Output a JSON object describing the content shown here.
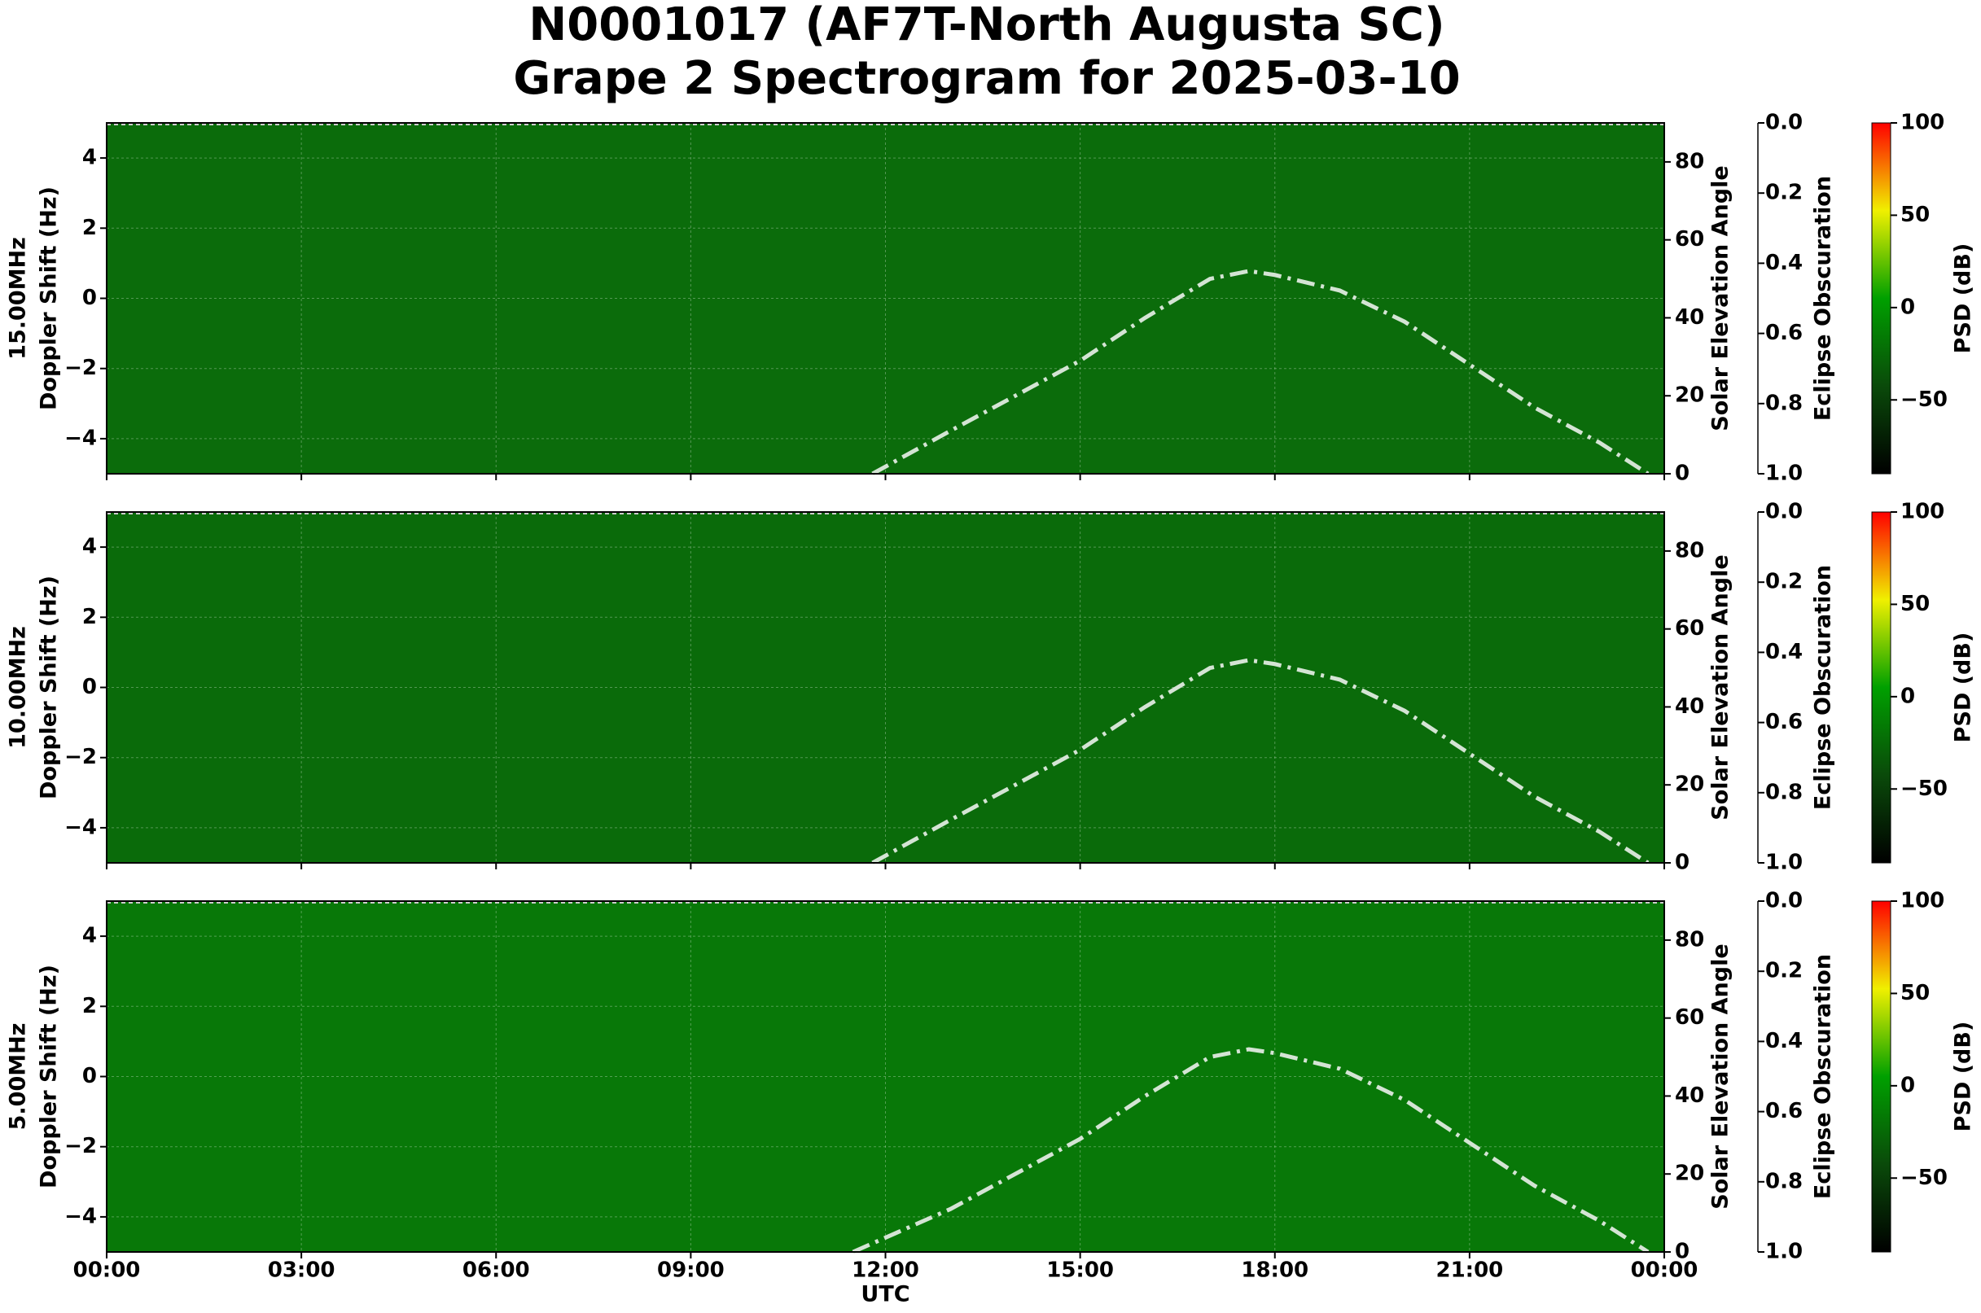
{
  "title": [
    "N0001017 (AF7T-North Augusta SC)",
    "Grape 2 Spectrogram for 2025-03-10"
  ],
  "chart_data": [
    {
      "type": "spectrogram",
      "ylabel": [
        "15.00MHz",
        "Doppler Shift (Hz)"
      ],
      "heatmap_color": "#0b6c0b",
      "xlim": [
        0,
        24
      ],
      "xticks": [
        0,
        3,
        6,
        9,
        12,
        15,
        18,
        21,
        24
      ],
      "ylim": [
        -5,
        5
      ],
      "yticks": [
        {
          "value": -4,
          "label": "−4"
        },
        {
          "value": -2,
          "label": "−2"
        },
        0,
        2,
        4
      ],
      "y2label": "Solar Elevation Angle",
      "y2lim": [
        0,
        90
      ],
      "y2ticks": [
        0,
        20,
        40,
        60,
        80
      ],
      "y3label": "Eclipse Obscuration",
      "y3lim": [
        0,
        1
      ],
      "y3_inverted": true,
      "y3ticks": [
        {
          "value": 0,
          "label": "0.0"
        },
        {
          "value": 0.2,
          "label": "0.2"
        },
        {
          "value": 0.4,
          "label": "0.4"
        },
        {
          "value": 0.6,
          "label": "0.6"
        },
        {
          "value": 0.8,
          "label": "0.8"
        },
        {
          "value": 1,
          "label": "1.0"
        }
      ],
      "clabel": "PSD (dB)",
      "clim": [
        -90,
        100
      ],
      "cticks": [
        {
          "value": -50,
          "label": "−50"
        },
        0,
        50,
        100
      ],
      "colormap": [
        "#000000",
        "#0a4a0a",
        "#00a000",
        "#f0f000",
        "#ff0000"
      ],
      "grid": true,
      "series": [
        {
          "axis": "y2",
          "color": "#d4e4d4",
          "x": [
            11.8,
            13,
            14,
            15,
            16,
            17,
            17.6,
            18,
            19,
            20,
            21,
            22,
            23,
            23.75
          ],
          "values": [
            0,
            11,
            20,
            29,
            40,
            50,
            52,
            51,
            47,
            39,
            28,
            17,
            8,
            0
          ]
        }
      ]
    },
    {
      "type": "spectrogram",
      "ylabel": [
        "10.00MHz",
        "Doppler Shift (Hz)"
      ],
      "heatmap_color": "#0a6b0a",
      "xlim": [
        0,
        24
      ],
      "xticks": [
        0,
        3,
        6,
        9,
        12,
        15,
        18,
        21,
        24
      ],
      "ylim": [
        -5,
        5
      ],
      "yticks": [
        {
          "value": -4,
          "label": "−4"
        },
        {
          "value": -2,
          "label": "−2"
        },
        0,
        2,
        4
      ],
      "y2label": "Solar Elevation Angle",
      "y2lim": [
        0,
        90
      ],
      "y2ticks": [
        0,
        20,
        40,
        60,
        80
      ],
      "y3label": "Eclipse Obscuration",
      "y3lim": [
        0,
        1
      ],
      "y3_inverted": true,
      "y3ticks": [
        {
          "value": 0,
          "label": "0.0"
        },
        {
          "value": 0.2,
          "label": "0.2"
        },
        {
          "value": 0.4,
          "label": "0.4"
        },
        {
          "value": 0.6,
          "label": "0.6"
        },
        {
          "value": 0.8,
          "label": "0.8"
        },
        {
          "value": 1,
          "label": "1.0"
        }
      ],
      "clabel": "PSD (dB)",
      "clim": [
        -90,
        100
      ],
      "cticks": [
        {
          "value": -50,
          "label": "−50"
        },
        0,
        50,
        100
      ],
      "colormap": [
        "#000000",
        "#0a4a0a",
        "#00a000",
        "#f0f000",
        "#ff0000"
      ],
      "grid": true,
      "series": [
        {
          "axis": "y2",
          "color": "#d4e4d4",
          "x": [
            11.8,
            13,
            14,
            15,
            16,
            17,
            17.6,
            18,
            19,
            20,
            21,
            22,
            23,
            23.75
          ],
          "values": [
            0,
            11,
            20,
            29,
            40,
            50,
            52,
            51,
            47,
            39,
            28,
            17,
            8,
            0
          ]
        }
      ]
    },
    {
      "type": "spectrogram",
      "ylabel": [
        "5.00MHz",
        "Doppler Shift (Hz)"
      ],
      "heatmap_color": "#087808",
      "xlabel": "UTC",
      "xlim": [
        0,
        24
      ],
      "xticks": [
        {
          "value": 0,
          "label": "00:00"
        },
        {
          "value": 3,
          "label": "03:00"
        },
        {
          "value": 6,
          "label": "06:00"
        },
        {
          "value": 9,
          "label": "09:00"
        },
        {
          "value": 12,
          "label": "12:00"
        },
        {
          "value": 15,
          "label": "15:00"
        },
        {
          "value": 18,
          "label": "18:00"
        },
        {
          "value": 21,
          "label": "21:00"
        },
        {
          "value": 24,
          "label": "00:00"
        }
      ],
      "ylim": [
        -5,
        5
      ],
      "yticks": [
        {
          "value": -4,
          "label": "−4"
        },
        {
          "value": -2,
          "label": "−2"
        },
        0,
        2,
        4
      ],
      "y2label": "Solar Elevation Angle",
      "y2lim": [
        0,
        90
      ],
      "y2ticks": [
        0,
        20,
        40,
        60,
        80
      ],
      "y3label": "Eclipse Obscuration",
      "y3lim": [
        0,
        1
      ],
      "y3_inverted": true,
      "y3ticks": [
        {
          "value": 0,
          "label": "0.0"
        },
        {
          "value": 0.2,
          "label": "0.2"
        },
        {
          "value": 0.4,
          "label": "0.4"
        },
        {
          "value": 0.6,
          "label": "0.6"
        },
        {
          "value": 0.8,
          "label": "0.8"
        },
        {
          "value": 1,
          "label": "1.0"
        }
      ],
      "clabel": "PSD (dB)",
      "clim": [
        -90,
        100
      ],
      "cticks": [
        {
          "value": -50,
          "label": "−50"
        },
        0,
        50,
        100
      ],
      "colormap": [
        "#000000",
        "#0a4a0a",
        "#00a000",
        "#f0f000",
        "#ff0000"
      ],
      "grid": true,
      "series": [
        {
          "axis": "y2",
          "color": "#d4e4d4",
          "x": [
            11.5,
            13,
            14,
            15,
            16,
            17,
            17.6,
            18,
            19,
            20,
            21,
            22,
            23,
            23.75
          ],
          "values": [
            0,
            11,
            20,
            29,
            40,
            50,
            52,
            51,
            47,
            39,
            28,
            17,
            8,
            0
          ]
        }
      ]
    }
  ]
}
